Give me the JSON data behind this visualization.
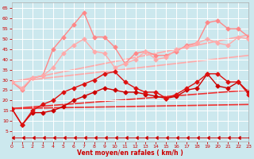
{
  "background_color": "#cce8ee",
  "grid_color": "#ffffff",
  "xlabel": "Vent moyen/en rafales ( km/h )",
  "xlabel_color": "#cc0000",
  "tick_color": "#cc0000",
  "ylim": [
    0,
    68
  ],
  "xlim": [
    0,
    23
  ],
  "yticks": [
    5,
    10,
    15,
    20,
    25,
    30,
    35,
    40,
    45,
    50,
    55,
    60,
    65
  ],
  "xticks": [
    0,
    1,
    2,
    3,
    4,
    5,
    6,
    7,
    8,
    9,
    10,
    11,
    12,
    13,
    14,
    15,
    16,
    17,
    18,
    19,
    20,
    21,
    22,
    23
  ],
  "lines_straight": [
    {
      "x0": 0,
      "x1": 23,
      "y0": 29,
      "y1": 52,
      "color": "#ffaaaa",
      "lw": 1.2
    },
    {
      "x0": 0,
      "x1": 23,
      "y0": 29,
      "y1": 42,
      "color": "#ffaaaa",
      "lw": 1.2
    },
    {
      "x0": 0,
      "x1": 23,
      "y0": 16,
      "y1": 25,
      "color": "#ee3333",
      "lw": 1.2
    },
    {
      "x0": 0,
      "x1": 23,
      "y0": 16,
      "y1": 18,
      "color": "#ee3333",
      "lw": 1.2
    }
  ],
  "line_pink_jagged1": {
    "x": [
      0,
      1,
      2,
      3,
      4,
      5,
      6,
      7,
      8,
      9,
      10,
      11,
      12,
      13,
      14,
      15,
      16,
      17,
      18,
      19,
      20,
      21,
      22,
      23
    ],
    "y": [
      29,
      25,
      31,
      32,
      45,
      51,
      57,
      63,
      51,
      51,
      46,
      38,
      43,
      44,
      42,
      42,
      44,
      47,
      48,
      58,
      59,
      55,
      55,
      51
    ],
    "color": "#ff8888",
    "lw": 1.0,
    "marker": "D",
    "ms": 2.5
  },
  "line_pink_jagged2": {
    "x": [
      0,
      1,
      2,
      3,
      4,
      5,
      6,
      7,
      8,
      9,
      10,
      11,
      12,
      13,
      14,
      15,
      16,
      17,
      18,
      19,
      20,
      21,
      22,
      23
    ],
    "y": [
      29,
      26,
      31,
      32,
      36,
      43,
      47,
      50,
      44,
      43,
      36,
      38,
      40,
      44,
      40,
      41,
      45,
      46,
      48,
      50,
      48,
      47,
      51,
      50
    ],
    "color": "#ffaaaa",
    "lw": 1.0,
    "marker": "D",
    "ms": 2.5
  },
  "line_red_jagged1": {
    "x": [
      0,
      1,
      2,
      3,
      4,
      5,
      6,
      7,
      8,
      9,
      10,
      11,
      12,
      13,
      14,
      15,
      16,
      17,
      18,
      19,
      20,
      21,
      22,
      23
    ],
    "y": [
      16,
      8,
      14,
      14,
      15,
      17,
      20,
      22,
      24,
      26,
      25,
      24,
      24,
      23,
      22,
      21,
      22,
      25,
      26,
      33,
      27,
      26,
      29,
      24
    ],
    "color": "#cc0000",
    "lw": 1.0,
    "marker": "D",
    "ms": 2.5
  },
  "line_red_jagged2": {
    "x": [
      0,
      1,
      2,
      3,
      4,
      5,
      6,
      7,
      8,
      9,
      10,
      11,
      12,
      13,
      14,
      15,
      16,
      17,
      18,
      19,
      20,
      21,
      22,
      23
    ],
    "y": [
      16,
      8,
      15,
      18,
      20,
      24,
      26,
      28,
      30,
      33,
      34,
      29,
      26,
      24,
      24,
      21,
      23,
      26,
      29,
      33,
      33,
      29,
      29,
      23
    ],
    "color": "#dd1111",
    "lw": 1.0,
    "marker": "D",
    "ms": 2.5
  },
  "line_arrow": {
    "x": [
      0,
      1,
      2,
      3,
      4,
      5,
      6,
      7,
      8,
      9,
      10,
      11,
      12,
      13,
      14,
      15,
      16,
      17,
      18,
      19,
      20,
      21,
      22,
      23
    ],
    "y": [
      2,
      2,
      2,
      2,
      2,
      2,
      2,
      2,
      2,
      2,
      2,
      2,
      2,
      2,
      2,
      2,
      2,
      2,
      2,
      2,
      2,
      2,
      2,
      2
    ],
    "color": "#cc0000",
    "lw": 0.6,
    "marker": 4,
    "ms": 3.0
  }
}
